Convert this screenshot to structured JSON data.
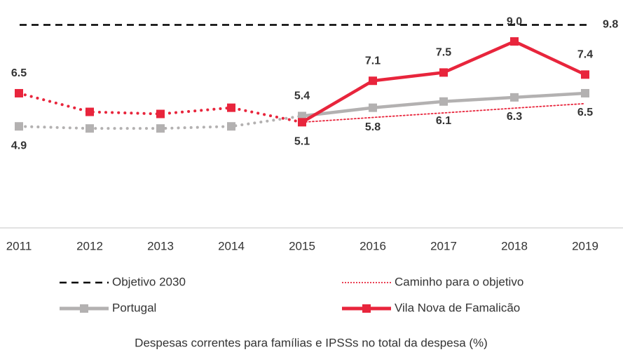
{
  "chart_data": {
    "type": "line",
    "caption": "Despesas correntes para famílias e IPSSs no total da despesa (%)",
    "categories": [
      "2011",
      "2012",
      "2013",
      "2014",
      "2015",
      "2016",
      "2017",
      "2018",
      "2019"
    ],
    "ylim": [
      0,
      11
    ],
    "target_line": {
      "name": "Objetivo 2030",
      "color": "#000000",
      "value": 9.8
    },
    "series": [
      {
        "name": "Caminho para o objetivo",
        "color": "#e8253c",
        "style": "dotted",
        "values": [
          null,
          null,
          null,
          null,
          5.1,
          5.33,
          5.55,
          5.78,
          6.0
        ]
      },
      {
        "name": "Portugal",
        "color": "#b3b1b1",
        "style": "markers",
        "dotted_through": "2015",
        "values": [
          4.9,
          4.8,
          4.8,
          4.9,
          5.4,
          5.8,
          6.1,
          6.3,
          6.5
        ],
        "value_labels": [
          "4.9",
          null,
          null,
          null,
          "5.4",
          "5.8",
          "6.1",
          "6.3",
          "6.5"
        ]
      },
      {
        "name": "Vila Nova de Famalicão",
        "color": "#e8253c",
        "style": "markers",
        "dotted_through": "2015",
        "values": [
          6.5,
          5.6,
          5.5,
          5.8,
          5.1,
          7.1,
          7.5,
          9.0,
          7.4
        ],
        "value_labels": [
          "6.5",
          null,
          null,
          null,
          "5.1",
          "7.1",
          "7.5",
          "9.0",
          "7.4"
        ]
      }
    ]
  }
}
